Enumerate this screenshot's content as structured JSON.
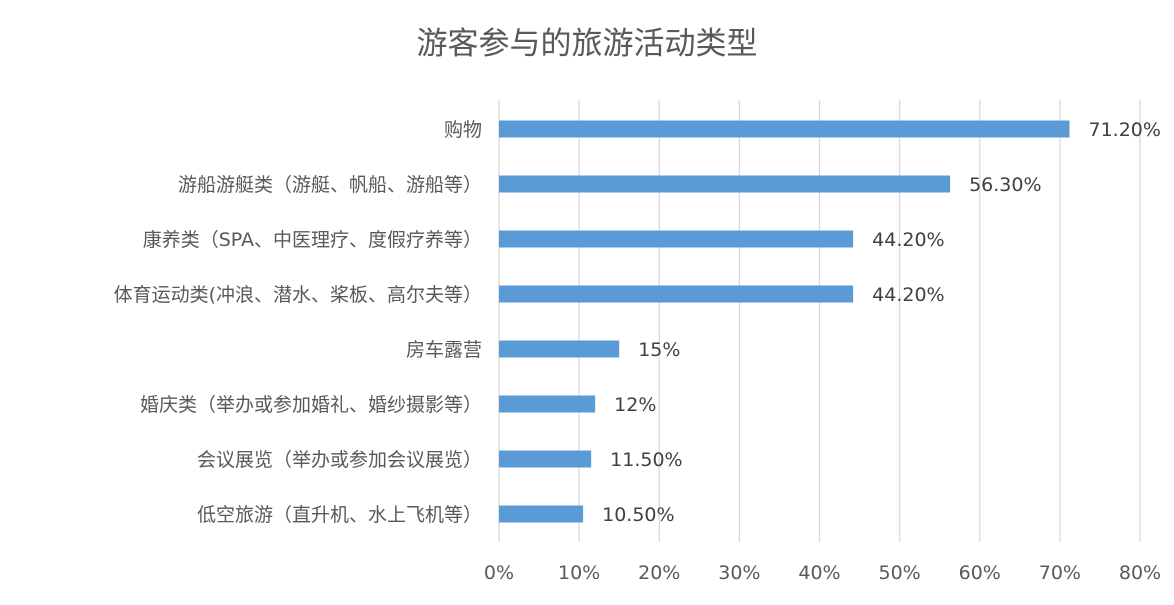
{
  "chart_data": {
    "type": "bar",
    "orientation": "horizontal",
    "title": "游客参与的旅游活动类型",
    "categories": [
      "购物",
      "游船游艇类（游艇、帆船、游船等）",
      "康养类（SPA、中医理疗、度假疗养等）",
      "体育运动类(冲浪、潜水、桨板、高尔夫等）",
      "房车露营",
      "婚庆类（举办或参加婚礼、婚纱摄影等）",
      "会议展览（举办或参加会议展览）",
      "低空旅游（直升机、水上飞机等）"
    ],
    "values": [
      71.2,
      56.3,
      44.2,
      44.2,
      15,
      12,
      11.5,
      10.5
    ],
    "data_labels": [
      "71.20%",
      "56.30%",
      "44.20%",
      "44.20%",
      "15%",
      "12%",
      "11.50%",
      "10.50%"
    ],
    "x_ticks": [
      "0%",
      "10%",
      "20%",
      "30%",
      "40%",
      "50%",
      "60%",
      "70%",
      "80%"
    ],
    "xlim": [
      0,
      80
    ],
    "grid": true,
    "bar_color": "#5B9BD5",
    "grid_color": "#D9D9D9",
    "text_color": "#595959"
  }
}
